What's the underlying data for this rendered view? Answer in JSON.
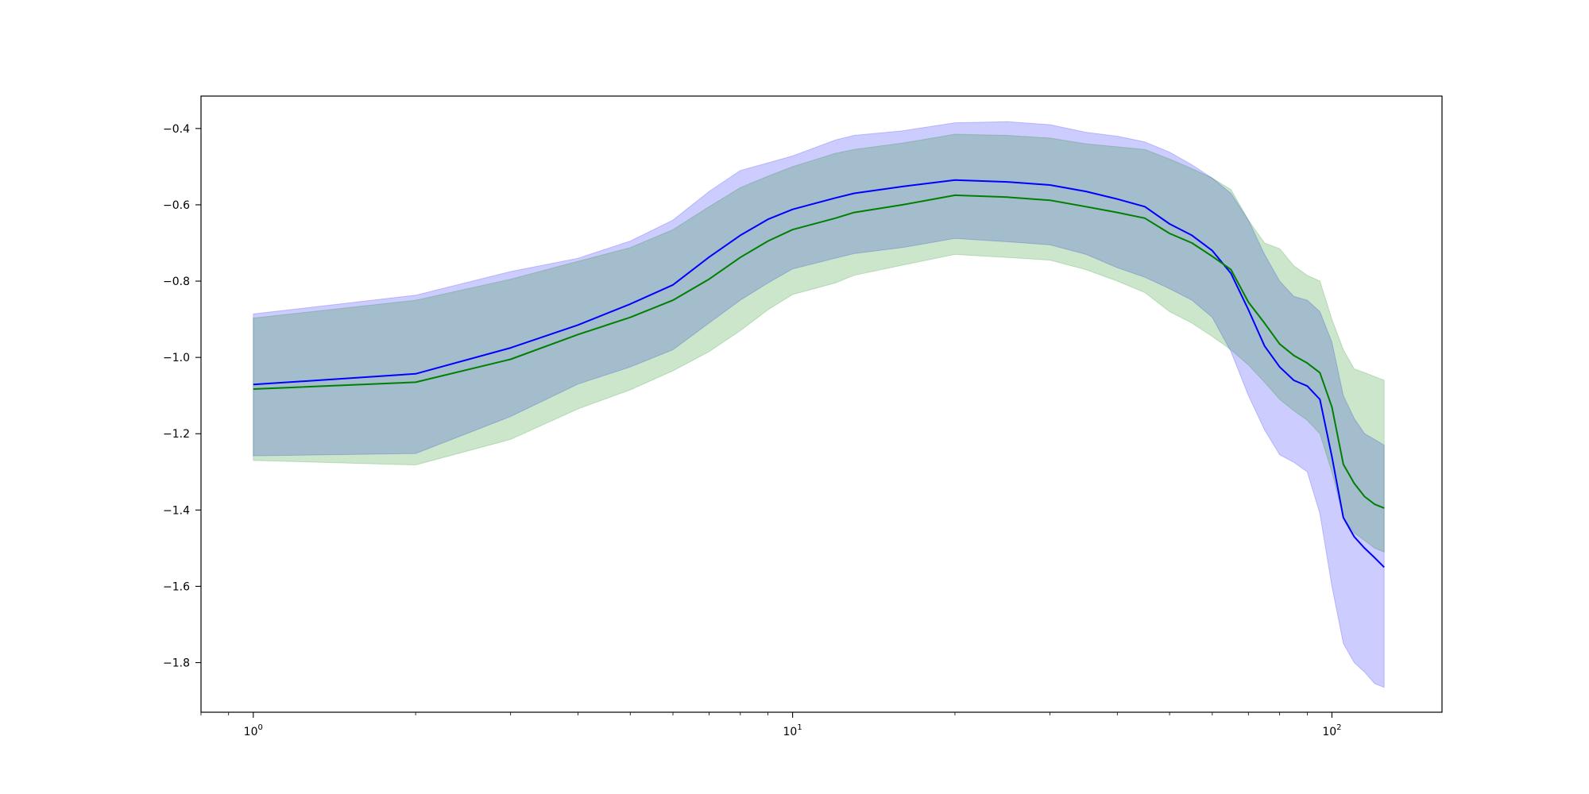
{
  "chart_data": {
    "type": "line",
    "title": "",
    "xlabel": "",
    "ylabel": "",
    "xscale": "log",
    "xlim": [
      0.8,
      160
    ],
    "ylim": [
      -1.93,
      -0.315
    ],
    "grid": false,
    "legend": "none",
    "x_ticks": [
      {
        "value": 1,
        "base": "10",
        "exp": "0"
      },
      {
        "value": 10,
        "base": "10",
        "exp": "1"
      },
      {
        "value": 100,
        "base": "10",
        "exp": "2"
      }
    ],
    "y_ticks": [
      {
        "value": -0.4,
        "label": "−0.4"
      },
      {
        "value": -0.6,
        "label": "−0.6"
      },
      {
        "value": -0.8,
        "label": "−0.8"
      },
      {
        "value": -1.0,
        "label": "−1.0"
      },
      {
        "value": -1.2,
        "label": "−1.2"
      },
      {
        "value": -1.4,
        "label": "−1.4"
      },
      {
        "value": -1.6,
        "label": "−1.6"
      },
      {
        "value": -1.8,
        "label": "−1.8"
      }
    ],
    "series": [
      {
        "color": "#0000ff",
        "band_color": "#0000ff",
        "band_opacity": 0.2,
        "points": [
          {
            "x": 1,
            "y": -1.071,
            "lo": -1.258,
            "hi": -0.886
          },
          {
            "x": 2,
            "y": -1.043,
            "lo": -1.252,
            "hi": -0.837
          },
          {
            "x": 3,
            "y": -0.975,
            "lo": -1.155,
            "hi": -0.775
          },
          {
            "x": 4,
            "y": -0.915,
            "lo": -1.07,
            "hi": -0.74
          },
          {
            "x": 5,
            "y": -0.86,
            "lo": -1.025,
            "hi": -0.695
          },
          {
            "x": 6,
            "y": -0.81,
            "lo": -0.98,
            "hi": -0.64
          },
          {
            "x": 7,
            "y": -0.737,
            "lo": -0.91,
            "hi": -0.565
          },
          {
            "x": 8,
            "y": -0.68,
            "lo": -0.85,
            "hi": -0.51
          },
          {
            "x": 9,
            "y": -0.638,
            "lo": -0.805,
            "hi": -0.49
          },
          {
            "x": 10,
            "y": -0.612,
            "lo": -0.768,
            "hi": -0.472
          },
          {
            "x": 12,
            "y": -0.582,
            "lo": -0.74,
            "hi": -0.43
          },
          {
            "x": 13,
            "y": -0.57,
            "lo": -0.728,
            "hi": -0.418
          },
          {
            "x": 16,
            "y": -0.552,
            "lo": -0.712,
            "hi": -0.406
          },
          {
            "x": 20,
            "y": -0.535,
            "lo": -0.688,
            "hi": -0.385
          },
          {
            "x": 25,
            "y": -0.54,
            "lo": -0.697,
            "hi": -0.382
          },
          {
            "x": 30,
            "y": -0.548,
            "lo": -0.705,
            "hi": -0.39
          },
          {
            "x": 35,
            "y": -0.565,
            "lo": -0.73,
            "hi": -0.41
          },
          {
            "x": 40,
            "y": -0.585,
            "lo": -0.765,
            "hi": -0.42
          },
          {
            "x": 45,
            "y": -0.605,
            "lo": -0.79,
            "hi": -0.435
          },
          {
            "x": 50,
            "y": -0.65,
            "lo": -0.82,
            "hi": -0.462
          },
          {
            "x": 55,
            "y": -0.68,
            "lo": -0.85,
            "hi": -0.495
          },
          {
            "x": 60,
            "y": -0.72,
            "lo": -0.895,
            "hi": -0.53
          },
          {
            "x": 65,
            "y": -0.78,
            "lo": -0.985,
            "hi": -0.57
          },
          {
            "x": 70,
            "y": -0.875,
            "lo": -1.1,
            "hi": -0.64
          },
          {
            "x": 75,
            "y": -0.97,
            "lo": -1.19,
            "hi": -0.73
          },
          {
            "x": 80,
            "y": -1.025,
            "lo": -1.255,
            "hi": -0.8
          },
          {
            "x": 85,
            "y": -1.06,
            "lo": -1.275,
            "hi": -0.84
          },
          {
            "x": 90,
            "y": -1.075,
            "lo": -1.3,
            "hi": -0.85
          },
          {
            "x": 95,
            "y": -1.11,
            "lo": -1.41,
            "hi": -0.88
          },
          {
            "x": 100,
            "y": -1.26,
            "lo": -1.6,
            "hi": -0.96
          },
          {
            "x": 105,
            "y": -1.42,
            "lo": -1.75,
            "hi": -1.1
          },
          {
            "x": 110,
            "y": -1.47,
            "lo": -1.8,
            "hi": -1.16
          },
          {
            "x": 115,
            "y": -1.5,
            "lo": -1.825,
            "hi": -1.2
          },
          {
            "x": 120,
            "y": -1.525,
            "lo": -1.855,
            "hi": -1.215
          },
          {
            "x": 125,
            "y": -1.55,
            "lo": -1.865,
            "hi": -1.23
          }
        ]
      },
      {
        "color": "#008000",
        "band_color": "#008000",
        "band_opacity": 0.2,
        "points": [
          {
            "x": 1,
            "y": -1.083,
            "lo": -1.27,
            "hi": -0.897
          },
          {
            "x": 2,
            "y": -1.065,
            "lo": -1.282,
            "hi": -0.85
          },
          {
            "x": 3,
            "y": -1.005,
            "lo": -1.215,
            "hi": -0.795
          },
          {
            "x": 4,
            "y": -0.94,
            "lo": -1.135,
            "hi": -0.748
          },
          {
            "x": 5,
            "y": -0.895,
            "lo": -1.085,
            "hi": -0.712
          },
          {
            "x": 6,
            "y": -0.85,
            "lo": -1.035,
            "hi": -0.665
          },
          {
            "x": 7,
            "y": -0.795,
            "lo": -0.985,
            "hi": -0.605
          },
          {
            "x": 8,
            "y": -0.738,
            "lo": -0.93,
            "hi": -0.555
          },
          {
            "x": 9,
            "y": -0.695,
            "lo": -0.875,
            "hi": -0.525
          },
          {
            "x": 10,
            "y": -0.665,
            "lo": -0.835,
            "hi": -0.5
          },
          {
            "x": 12,
            "y": -0.635,
            "lo": -0.805,
            "hi": -0.465
          },
          {
            "x": 13,
            "y": -0.62,
            "lo": -0.785,
            "hi": -0.455
          },
          {
            "x": 16,
            "y": -0.6,
            "lo": -0.758,
            "hi": -0.438
          },
          {
            "x": 20,
            "y": -0.575,
            "lo": -0.73,
            "hi": -0.415
          },
          {
            "x": 25,
            "y": -0.58,
            "lo": -0.738,
            "hi": -0.418
          },
          {
            "x": 30,
            "y": -0.588,
            "lo": -0.745,
            "hi": -0.425
          },
          {
            "x": 35,
            "y": -0.605,
            "lo": -0.77,
            "hi": -0.44
          },
          {
            "x": 40,
            "y": -0.62,
            "lo": -0.8,
            "hi": -0.448
          },
          {
            "x": 45,
            "y": -0.635,
            "lo": -0.83,
            "hi": -0.455
          },
          {
            "x": 50,
            "y": -0.675,
            "lo": -0.88,
            "hi": -0.48
          },
          {
            "x": 55,
            "y": -0.7,
            "lo": -0.91,
            "hi": -0.505
          },
          {
            "x": 60,
            "y": -0.735,
            "lo": -0.945,
            "hi": -0.53
          },
          {
            "x": 65,
            "y": -0.77,
            "lo": -0.98,
            "hi": -0.56
          },
          {
            "x": 70,
            "y": -0.855,
            "lo": -1.02,
            "hi": -0.64
          },
          {
            "x": 75,
            "y": -0.91,
            "lo": -1.065,
            "hi": -0.7
          },
          {
            "x": 80,
            "y": -0.965,
            "lo": -1.11,
            "hi": -0.715
          },
          {
            "x": 85,
            "y": -0.995,
            "lo": -1.14,
            "hi": -0.76
          },
          {
            "x": 90,
            "y": -1.015,
            "lo": -1.165,
            "hi": -0.785
          },
          {
            "x": 95,
            "y": -1.04,
            "lo": -1.2,
            "hi": -0.8
          },
          {
            "x": 100,
            "y": -1.13,
            "lo": -1.3,
            "hi": -0.9
          },
          {
            "x": 105,
            "y": -1.28,
            "lo": -1.42,
            "hi": -0.98
          },
          {
            "x": 110,
            "y": -1.33,
            "lo": -1.46,
            "hi": -1.03
          },
          {
            "x": 115,
            "y": -1.365,
            "lo": -1.48,
            "hi": -1.04
          },
          {
            "x": 120,
            "y": -1.385,
            "lo": -1.5,
            "hi": -1.05
          },
          {
            "x": 125,
            "y": -1.395,
            "lo": -1.51,
            "hi": -1.06
          }
        ]
      }
    ]
  }
}
